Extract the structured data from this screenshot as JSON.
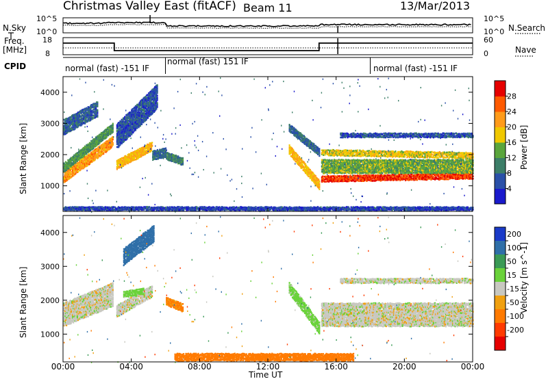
{
  "header": {
    "title": "Christmas Valley East (fitACF)",
    "beam": "Beam 11",
    "date": "13/Mar/2013"
  },
  "left_labels": {
    "nsky": "N.Sky",
    "freq_line1": "Freq.",
    "freq_line2": "[MHz]",
    "cpid": "CPID"
  },
  "right_labels": {
    "nsearch": "N.Search",
    "nave": "Nave"
  },
  "noise_panel": {
    "left_ticks": [
      "10^5",
      "10^0"
    ],
    "right_ticks": [
      "10^5",
      "10^0"
    ]
  },
  "freq_panel": {
    "left_ticks": [
      "18",
      "8"
    ],
    "right_ticks": [
      "60",
      "0"
    ]
  },
  "cpid_segments": [
    {
      "label": "normal (fast) -151 IF",
      "start_hour": 0.0,
      "end_hour": 6.0
    },
    {
      "label": "normal (fast) 151 IF",
      "start_hour": 6.0,
      "end_hour": 18.0
    },
    {
      "label": "normal (fast) -151 IF",
      "start_hour": 18.0,
      "end_hour": 24.0
    }
  ],
  "time_axis": {
    "label": "Time UT",
    "ticks": [
      "00:00",
      "04:00",
      "08:00",
      "12:00",
      "16:00",
      "20:00",
      "00:00"
    ],
    "range_hours": [
      0,
      24
    ]
  },
  "range_axis": {
    "label": "Slant Range [km]",
    "ticks": [
      "1000",
      "2000",
      "3000",
      "4000"
    ],
    "range_km": [
      180,
      4500
    ]
  },
  "power_colorbar": {
    "label": "Power [dB]",
    "ticks": [
      "4",
      "8",
      "12",
      "16",
      "20",
      "24",
      "28"
    ],
    "range": [
      0,
      32
    ],
    "colors": [
      "#1a1acc",
      "#2a50a8",
      "#3c7e68",
      "#5aa53c",
      "#f0c800",
      "#ff9b1a",
      "#ff5a00",
      "#e60000"
    ]
  },
  "velocity_colorbar": {
    "label": "Velocity [m s^-1]",
    "ticks": [
      "200",
      "100",
      "50",
      "15",
      "-15",
      "-50",
      "-100",
      "-200"
    ],
    "colors": [
      "#1a3ac8",
      "#2f6fa8",
      "#3a9a55",
      "#6ad23a",
      "#c8c8c0",
      "#f0a010",
      "#ff7a00",
      "#ff3a00",
      "#e60000"
    ]
  },
  "chart_data": [
    {
      "type": "heatmap",
      "panel": "power",
      "xlabel": "Time UT",
      "ylabel": "Slant Range [km]",
      "xlim_hours": [
        0,
        24
      ],
      "ylim_km": [
        180,
        4500
      ],
      "colorbar_label": "Power [dB]",
      "bands": [
        {
          "t0": 0.0,
          "t1": 2.9,
          "r_center_start": 1300,
          "r_center_end": 2450,
          "width_km": 350,
          "value": 22
        },
        {
          "t0": 0.0,
          "t1": 2.9,
          "r_center_start": 1600,
          "r_center_end": 2900,
          "width_km": 300,
          "value": 12
        },
        {
          "t0": 0.0,
          "t1": 2.0,
          "r_center_start": 2900,
          "r_center_end": 3500,
          "width_km": 500,
          "value": 7
        },
        {
          "t0": 3.1,
          "t1": 5.2,
          "r_center_start": 1700,
          "r_center_end": 2300,
          "width_km": 300,
          "value": 20
        },
        {
          "t0": 3.1,
          "t1": 5.5,
          "r_center_start": 2600,
          "r_center_end": 3900,
          "width_km": 800,
          "value": 6
        },
        {
          "t0": 5.2,
          "t1": 6.0,
          "r_center_start": 2000,
          "r_center_end": 2100,
          "width_km": 300,
          "value": 8
        },
        {
          "t0": 6.0,
          "t1": 7.0,
          "r_center_start": 2000,
          "r_center_end": 1800,
          "width_km": 250,
          "value": 10
        },
        {
          "t0": 13.2,
          "t1": 15.0,
          "r_center_start": 2200,
          "r_center_end": 1050,
          "width_km": 300,
          "value": 20
        },
        {
          "t0": 13.2,
          "t1": 15.0,
          "r_center_start": 2900,
          "r_center_end": 2100,
          "width_km": 250,
          "value": 8
        },
        {
          "t0": 15.1,
          "t1": 24.0,
          "r_center_start": 1250,
          "r_center_end": 1350,
          "width_km": 200,
          "value": 28
        },
        {
          "t0": 15.1,
          "t1": 24.0,
          "r_center_start": 1650,
          "r_center_end": 1650,
          "width_km": 450,
          "value": 14
        },
        {
          "t0": 15.1,
          "t1": 24.0,
          "r_center_start": 2100,
          "r_center_end": 2000,
          "width_km": 200,
          "value": 18
        },
        {
          "t0": 16.2,
          "t1": 24.0,
          "r_center_start": 2650,
          "r_center_end": 2650,
          "width_km": 150,
          "value": 6
        },
        {
          "t0": 0.0,
          "t1": 24.0,
          "r_center_start": 300,
          "r_center_end": 300,
          "width_km": 120,
          "value": 5
        }
      ]
    },
    {
      "type": "heatmap",
      "panel": "velocity",
      "xlabel": "Time UT",
      "ylabel": "Slant Range [km]",
      "xlim_hours": [
        0,
        24
      ],
      "ylim_km": [
        180,
        4500
      ],
      "colorbar_label": "Velocity [m s^-1]",
      "bands": [
        {
          "t0": 0.0,
          "t1": 2.9,
          "r_center_start": 1600,
          "r_center_end": 2200,
          "width_km": 700,
          "value": 0
        },
        {
          "t0": 3.1,
          "t1": 5.2,
          "r_center_start": 1700,
          "r_center_end": 2300,
          "width_km": 350,
          "value": 0
        },
        {
          "t0": 3.5,
          "t1": 5.3,
          "r_center_start": 3300,
          "r_center_end": 4000,
          "width_km": 500,
          "value": 180
        },
        {
          "t0": 3.5,
          "t1": 4.7,
          "r_center_start": 2200,
          "r_center_end": 2300,
          "width_km": 200,
          "value": 30
        },
        {
          "t0": 6.0,
          "t1": 7.0,
          "r_center_start": 2000,
          "r_center_end": 1800,
          "width_km": 250,
          "value": -60
        },
        {
          "t0": 13.2,
          "t1": 15.0,
          "r_center_start": 2400,
          "r_center_end": 1200,
          "width_km": 350,
          "value": 30
        },
        {
          "t0": 15.1,
          "t1": 24.0,
          "r_center_start": 1600,
          "r_center_end": 1600,
          "width_km": 700,
          "value": 0
        },
        {
          "t0": 16.2,
          "t1": 24.0,
          "r_center_start": 2600,
          "r_center_end": 2600,
          "width_km": 150,
          "value": 0
        },
        {
          "t0": 6.5,
          "t1": 17.0,
          "r_center_start": 350,
          "r_center_end": 350,
          "width_km": 220,
          "value": -80
        }
      ]
    }
  ]
}
